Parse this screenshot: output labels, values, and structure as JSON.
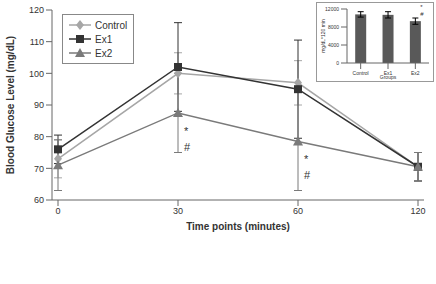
{
  "chart_data": {
    "type": "line",
    "xlabel": "Time points (minutes)",
    "ylabel": "Blood Glucose Level (mg/dL)",
    "categories": [
      "0",
      "30",
      "60",
      "120"
    ],
    "ylim": [
      60,
      120
    ],
    "yticks": [
      60,
      70,
      80,
      90,
      100,
      110,
      120
    ],
    "legend": "upper left",
    "grid": false,
    "series": [
      {
        "name": "Control",
        "color": "#a6a6a6",
        "marker": "diamond",
        "values": [
          73,
          100,
          97,
          70.5
        ],
        "errors": [
          6,
          6.5,
          7,
          4.5
        ]
      },
      {
        "name": "Ex1",
        "color": "#333333",
        "marker": "square",
        "values": [
          76,
          102,
          95,
          70.5
        ],
        "errors": [
          4.5,
          14,
          15.5,
          4.5
        ]
      },
      {
        "name": "Ex2",
        "color": "#7a7a7a",
        "marker": "triangle",
        "values": [
          71,
          87.5,
          78.5,
          70.5
        ],
        "errors": [
          8,
          12.5,
          15.5,
          4.5
        ]
      }
    ],
    "annotations": [
      {
        "series": "Ex2",
        "category": "30",
        "texts": [
          "*",
          "#"
        ]
      },
      {
        "series": "Ex2",
        "category": "60",
        "texts": [
          "*",
          "#"
        ]
      }
    ],
    "inset": {
      "type": "bar",
      "xlabel": "Groups",
      "ylabel": "mg/dL*120 min",
      "categories": [
        "Control",
        "Ex1",
        "Ex2"
      ],
      "values": [
        10800,
        10700,
        9300
      ],
      "errors": [
        600,
        700,
        700
      ],
      "color": "#595959",
      "ylim": [
        0,
        12000
      ],
      "yticks": [
        0,
        2000,
        4000,
        6000,
        8000,
        10000,
        12000
      ],
      "annotations": [
        {
          "category": "Ex2",
          "texts": [
            "*",
            "#"
          ]
        }
      ]
    }
  }
}
